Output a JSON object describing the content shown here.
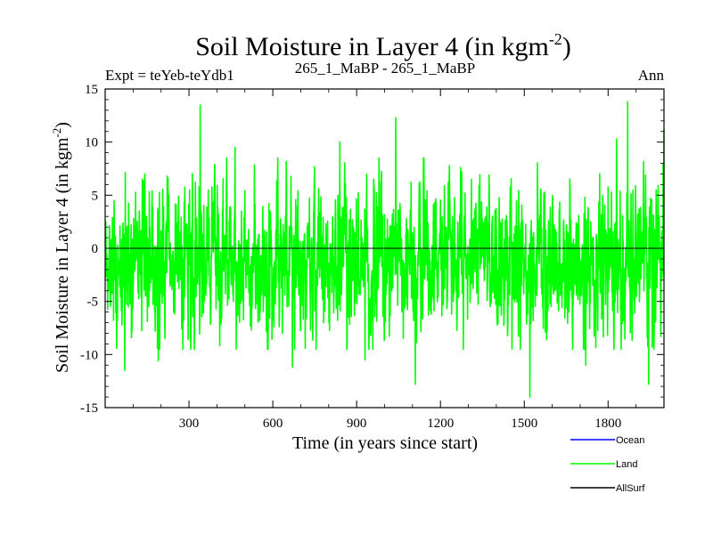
{
  "chart_data": {
    "type": "line",
    "title": "Soil Moisture in Layer 4 (in kgm",
    "title_sup": "-2",
    "title_end": ")",
    "subtitle_left": "Expt = teYeb-teYdb1",
    "subtitle_center": "265_1_MaBP - 265_1_MaBP",
    "subtitle_right": "Ann",
    "xlabel": "Time (in years since start)",
    "ylabel": "Soil Moisture in Layer 4 (in kgm",
    "ylabel_sup": "-2",
    "ylabel_end": ")",
    "xlim": [
      0,
      2000
    ],
    "ylim": [
      -15,
      15
    ],
    "xticks": [
      300,
      600,
      900,
      1200,
      1500,
      1800
    ],
    "yticks": [
      -15,
      -10,
      -5,
      0,
      5,
      10,
      15
    ],
    "zero_line": true,
    "series": [
      {
        "name": "Ocean",
        "color": "#0000ff",
        "values": []
      },
      {
        "name": "Land",
        "color": "#00ff00",
        "generated": true,
        "n_years": 2000,
        "std": 3.6,
        "mean": -1.2,
        "peaks": [
          {
            "x": 340,
            "y": 13.5
          },
          {
            "x": 1040,
            "y": 12.3
          },
          {
            "x": 1870,
            "y": 13.8
          },
          {
            "x": 2000,
            "y": 11.2
          },
          {
            "x": 465,
            "y": 9.5
          },
          {
            "x": 840,
            "y": 10.0
          },
          {
            "x": 1830,
            "y": 10.3
          },
          {
            "x": 1520,
            "y": -14.0
          },
          {
            "x": 1110,
            "y": -12.8
          },
          {
            "x": 1945,
            "y": -12.8
          },
          {
            "x": 70,
            "y": -11.5
          },
          {
            "x": 670,
            "y": -11.2
          },
          {
            "x": 190,
            "y": -10.6
          },
          {
            "x": 930,
            "y": -10.5
          },
          {
            "x": 1720,
            "y": -11.0
          }
        ]
      },
      {
        "name": "AllSurf",
        "color": "#000000",
        "values": []
      }
    ],
    "legend_position": "bottom-right"
  }
}
